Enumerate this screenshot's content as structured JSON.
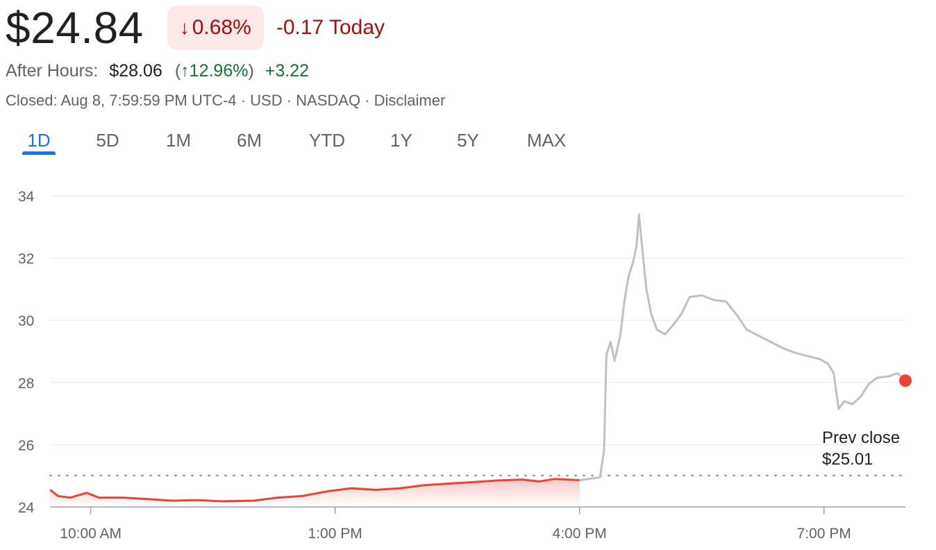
{
  "quote": {
    "price": "$24.84",
    "change_pct": "0.68%",
    "change_abs": "-0.17 Today",
    "down_color": "#a50e0e",
    "up_color": "#137333"
  },
  "after_hours": {
    "label": "After Hours:",
    "price": "$28.06",
    "paren_open": "(",
    "pct": "12.96%",
    "paren_close": ")",
    "change": "+3.22"
  },
  "status": {
    "closed_text": "Closed: Aug 8, 7:59:59 PM UTC-4 · USD · NASDAQ · ",
    "disclaimer": "Disclaimer"
  },
  "tabs": [
    {
      "label": "1D",
      "active": true
    },
    {
      "label": "5D"
    },
    {
      "label": "1M"
    },
    {
      "label": "6M"
    },
    {
      "label": "YTD"
    },
    {
      "label": "1Y"
    },
    {
      "label": "5Y"
    },
    {
      "label": "MAX"
    }
  ],
  "chart_data": {
    "type": "line",
    "ylim": [
      24,
      34
    ],
    "y_ticks": [
      "24",
      "26",
      "28",
      "30",
      "32",
      "34"
    ],
    "x_ticks": [
      "10:00 AM",
      "1:00 PM",
      "4:00 PM",
      "7:00 PM"
    ],
    "x_range_hours": [
      9.5,
      20.0
    ],
    "x_tick_hours": [
      10,
      13,
      16,
      19
    ],
    "prev_close": {
      "value": 25.01,
      "label_line1": "Prev close",
      "label_line2": "$25.01"
    },
    "regular_session": {
      "color": "#ea4335",
      "points": [
        [
          9.5,
          24.55
        ],
        [
          9.6,
          24.35
        ],
        [
          9.75,
          24.3
        ],
        [
          9.95,
          24.45
        ],
        [
          10.1,
          24.3
        ],
        [
          10.4,
          24.3
        ],
        [
          10.7,
          24.25
        ],
        [
          11.0,
          24.2
        ],
        [
          11.3,
          24.22
        ],
        [
          11.6,
          24.18
        ],
        [
          12.0,
          24.2
        ],
        [
          12.3,
          24.3
        ],
        [
          12.6,
          24.35
        ],
        [
          12.9,
          24.5
        ],
        [
          13.2,
          24.6
        ],
        [
          13.5,
          24.55
        ],
        [
          13.8,
          24.6
        ],
        [
          14.1,
          24.7
        ],
        [
          14.4,
          24.75
        ],
        [
          14.7,
          24.8
        ],
        [
          15.0,
          24.85
        ],
        [
          15.3,
          24.88
        ],
        [
          15.5,
          24.82
        ],
        [
          15.7,
          24.9
        ],
        [
          15.85,
          24.88
        ],
        [
          16.0,
          24.86
        ]
      ]
    },
    "after_hours_session": {
      "color": "#bdc1c6",
      "points": [
        [
          16.0,
          24.86
        ],
        [
          16.25,
          24.95
        ],
        [
          16.3,
          25.8
        ],
        [
          16.33,
          28.9
        ],
        [
          16.38,
          29.3
        ],
        [
          16.43,
          28.7
        ],
        [
          16.5,
          29.5
        ],
        [
          16.55,
          30.6
        ],
        [
          16.6,
          31.4
        ],
        [
          16.66,
          31.9
        ],
        [
          16.7,
          32.4
        ],
        [
          16.73,
          33.4
        ],
        [
          16.77,
          32.3
        ],
        [
          16.82,
          31.0
        ],
        [
          16.88,
          30.2
        ],
        [
          16.95,
          29.7
        ],
        [
          17.05,
          29.55
        ],
        [
          17.15,
          29.85
        ],
        [
          17.25,
          30.2
        ],
        [
          17.35,
          30.75
        ],
        [
          17.5,
          30.8
        ],
        [
          17.65,
          30.65
        ],
        [
          17.8,
          30.6
        ],
        [
          17.95,
          30.1
        ],
        [
          18.05,
          29.7
        ],
        [
          18.2,
          29.5
        ],
        [
          18.35,
          29.3
        ],
        [
          18.5,
          29.1
        ],
        [
          18.65,
          28.95
        ],
        [
          18.8,
          28.85
        ],
        [
          18.95,
          28.75
        ],
        [
          19.05,
          28.6
        ],
        [
          19.12,
          28.3
        ],
        [
          19.18,
          27.15
        ],
        [
          19.25,
          27.4
        ],
        [
          19.35,
          27.3
        ],
        [
          19.45,
          27.55
        ],
        [
          19.55,
          27.95
        ],
        [
          19.65,
          28.15
        ],
        [
          19.8,
          28.2
        ],
        [
          19.9,
          28.3
        ],
        [
          19.97,
          28.15
        ]
      ]
    },
    "last_point": {
      "x": 20.0,
      "y": 28.06,
      "color": "#ea4335"
    }
  }
}
